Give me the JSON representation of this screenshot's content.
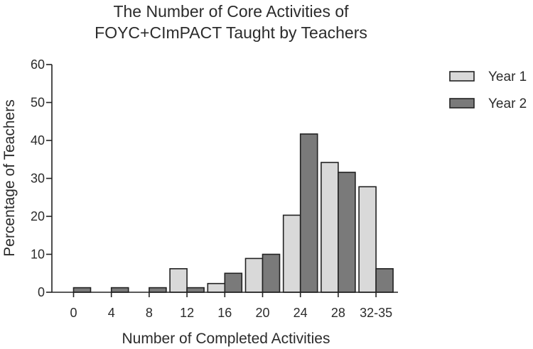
{
  "chart_data": {
    "type": "bar",
    "title_lines": [
      "The Number of Core Activities of",
      "FOYC+CImPACT Taught by Teachers"
    ],
    "xlabel": "Number of Completed Activities",
    "ylabel": "Percentage of Teachers",
    "categories": [
      "0",
      "4",
      "8",
      "12",
      "16",
      "20",
      "24",
      "28",
      "32-35"
    ],
    "series": [
      {
        "name": "Year 1",
        "color": "#d9d9d9",
        "values": [
          0,
          0,
          0,
          6.2,
          2.3,
          8.9,
          20.3,
          34.2,
          27.8
        ]
      },
      {
        "name": "Year 2",
        "color": "#7a7a7a",
        "values": [
          1.2,
          1.2,
          1.2,
          1.2,
          5.0,
          10.0,
          41.7,
          31.6,
          6.2
        ]
      }
    ],
    "ylim": [
      0,
      60
    ],
    "yticks": [
      "0",
      "10",
      "20",
      "30",
      "40",
      "50",
      "60"
    ],
    "grid": false,
    "legend_position": "right"
  }
}
